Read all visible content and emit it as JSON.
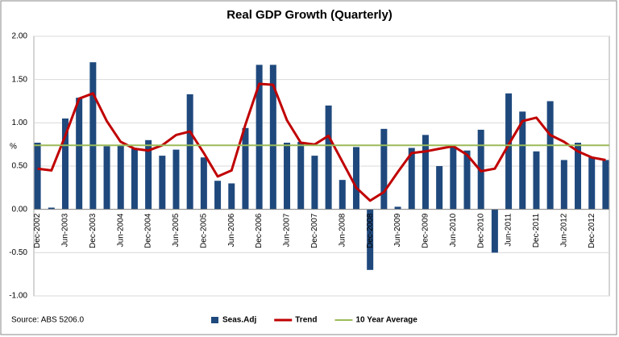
{
  "chart_data": {
    "type": "bar_line",
    "title": "Real GDP Growth (Quarterly)",
    "y_label": "%",
    "source": "Source: ABS 5206.0",
    "categories": [
      "Dec-2002",
      null,
      "Jun-2003",
      null,
      "Dec-2003",
      null,
      "Jun-2004",
      null,
      "Dec-2004",
      null,
      "Jun-2005",
      null,
      "Dec-2005",
      null,
      "Jun-2006",
      null,
      "Dec-2006",
      null,
      "Jun-2007",
      null,
      "Dec-2007",
      null,
      "Jun-2008",
      null,
      "Dec-2008",
      null,
      "Jun-2009",
      null,
      "Dec-2009",
      null,
      "Jun-2010",
      null,
      "Dec-2010",
      null,
      "Jun-2011",
      null,
      "Dec-2011",
      null,
      "Jun-2012",
      null,
      "Dec-2012",
      null
    ],
    "series": [
      {
        "name": "Seas.Adj",
        "type": "bar",
        "color": "#1f497d",
        "values": [
          0.77,
          0.02,
          1.05,
          1.29,
          1.7,
          0.73,
          0.74,
          0.7,
          0.8,
          0.62,
          0.69,
          1.33,
          0.6,
          0.33,
          0.3,
          0.94,
          1.67,
          1.67,
          0.77,
          0.78,
          0.62,
          1.2,
          0.34,
          0.72,
          -0.7,
          0.93,
          0.03,
          0.71,
          0.86,
          0.5,
          0.72,
          0.68,
          0.92,
          -0.5,
          1.34,
          1.13,
          0.67,
          1.25,
          0.57,
          0.77,
          0.6,
          0.57
        ]
      },
      {
        "name": "Trend",
        "type": "line",
        "color": "#c00000",
        "values": [
          0.47,
          0.45,
          0.85,
          1.28,
          1.34,
          1.02,
          0.78,
          0.7,
          0.68,
          0.74,
          0.86,
          0.9,
          0.65,
          0.38,
          0.45,
          0.98,
          1.45,
          1.44,
          1.03,
          0.77,
          0.75,
          0.85,
          0.55,
          0.25,
          0.1,
          0.2,
          0.43,
          0.65,
          0.67,
          0.7,
          0.73,
          0.63,
          0.44,
          0.47,
          0.75,
          1.02,
          1.06,
          0.86,
          0.78,
          0.67,
          0.6,
          0.57
        ]
      }
    ],
    "reference_line": {
      "name": "10 Year Average",
      "value": 0.74,
      "color": "#9bbb59"
    },
    "ylim": [
      -1,
      2
    ],
    "yticks": [
      {
        "value": 2,
        "label": "2.00"
      },
      {
        "value": 1.5,
        "label": "1.50"
      },
      {
        "value": 1,
        "label": "1.00"
      },
      {
        "value": 0.5,
        "label": "0.50"
      },
      {
        "value": 0,
        "label": "0.00"
      },
      {
        "value": -0.5,
        "label": "-0.50"
      },
      {
        "value": -1,
        "label": "-1.00"
      }
    ],
    "grid": true,
    "legend": "bottom"
  }
}
